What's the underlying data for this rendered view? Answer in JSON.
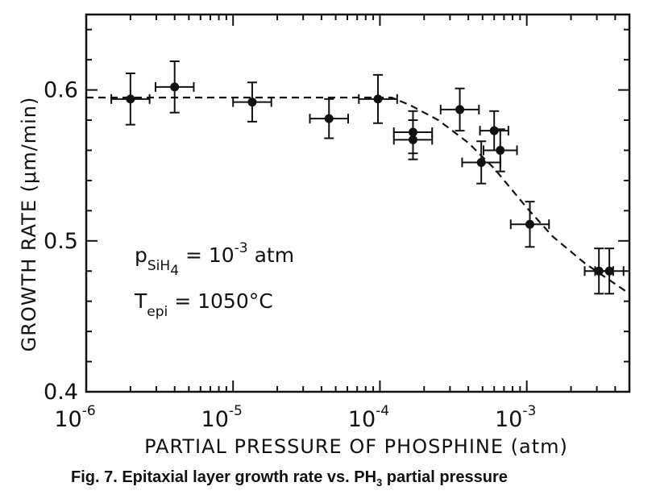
{
  "chart_data": {
    "type": "scatter",
    "title": "",
    "xlabel": "PARTIAL PRESSURE OF PHOSPHINE (atm)",
    "ylabel": "GROWTH RATE (μm/min)",
    "x_scale": "log",
    "xlim": [
      1e-06,
      0.005
    ],
    "ylim": [
      0.4,
      0.65
    ],
    "x_ticks": [
      {
        "value": 1e-06,
        "base": "10",
        "exp": "-6"
      },
      {
        "value": 1e-05,
        "base": "10",
        "exp": "-5"
      },
      {
        "value": 0.0001,
        "base": "10",
        "exp": "-4"
      },
      {
        "value": 0.001,
        "base": "10",
        "exp": "-3"
      }
    ],
    "y_ticks": [
      {
        "value": 0.4,
        "label": "0.4"
      },
      {
        "value": 0.5,
        "label": "0.5"
      },
      {
        "value": 0.6,
        "label": "0.6"
      }
    ],
    "grid": false,
    "series": [
      {
        "style": "points-with-error-bars",
        "color": "#111111",
        "points": [
          {
            "x": 2e-06,
            "y": 0.594,
            "xerr_factor": 1.35,
            "yerr": 0.017
          },
          {
            "x": 4e-06,
            "y": 0.602,
            "xerr_factor": 1.35,
            "yerr": 0.017
          },
          {
            "x": 1.35e-05,
            "y": 0.592,
            "xerr_factor": 1.35,
            "yerr": 0.013
          },
          {
            "x": 4.5e-05,
            "y": 0.581,
            "xerr_factor": 1.35,
            "yerr": 0.013
          },
          {
            "x": 9.7e-05,
            "y": 0.594,
            "xerr_factor": 1.35,
            "yerr": 0.016
          },
          {
            "x": 0.000168,
            "y": 0.572,
            "xerr_factor": 1.35,
            "yerr": 0.014
          },
          {
            "x": 0.000168,
            "y": 0.567,
            "xerr_factor": 1.35,
            "yerr": 0.013
          },
          {
            "x": 0.00035,
            "y": 0.587,
            "xerr_factor": 1.35,
            "yerr": 0.014
          },
          {
            "x": 0.00049,
            "y": 0.552,
            "xerr_factor": 1.35,
            "yerr": 0.014
          },
          {
            "x": 0.0006,
            "y": 0.573,
            "xerr_factor": 1.25,
            "yerr": 0.013
          },
          {
            "x": 0.00066,
            "y": 0.56,
            "xerr_factor": 1.3,
            "yerr": 0.014
          },
          {
            "x": 0.00105,
            "y": 0.511,
            "xerr_factor": 1.35,
            "yerr": 0.015
          },
          {
            "x": 0.0031,
            "y": 0.48,
            "xerr_factor": 1.25,
            "yerr": 0.015
          },
          {
            "x": 0.00365,
            "y": 0.48,
            "xerr_factor": 1.25,
            "yerr": 0.015
          }
        ]
      },
      {
        "style": "dashed-fit",
        "color": "#111111",
        "points": [
          {
            "x": 1e-06,
            "y": 0.595
          },
          {
            "x": 0.00012,
            "y": 0.595
          },
          {
            "x": 0.00016,
            "y": 0.59
          },
          {
            "x": 0.00025,
            "y": 0.58
          },
          {
            "x": 0.0004,
            "y": 0.565
          },
          {
            "x": 0.0006,
            "y": 0.548
          },
          {
            "x": 0.001,
            "y": 0.522
          },
          {
            "x": 0.0015,
            "y": 0.503
          },
          {
            "x": 0.0025,
            "y": 0.485
          },
          {
            "x": 0.005,
            "y": 0.465
          }
        ]
      }
    ],
    "annotations": [
      {
        "main": "p",
        "sub": "SiH",
        "subsub": "4",
        "text": " = 10",
        "exp": "-3",
        "tail": " atm"
      },
      {
        "main": "T",
        "sub": "epi",
        "text": " = 1050°C"
      }
    ]
  },
  "caption": {
    "text": "Fig. 7. Epitaxial layer growth rate vs. PH",
    "sub": "3",
    "tail": " partial pressure"
  }
}
